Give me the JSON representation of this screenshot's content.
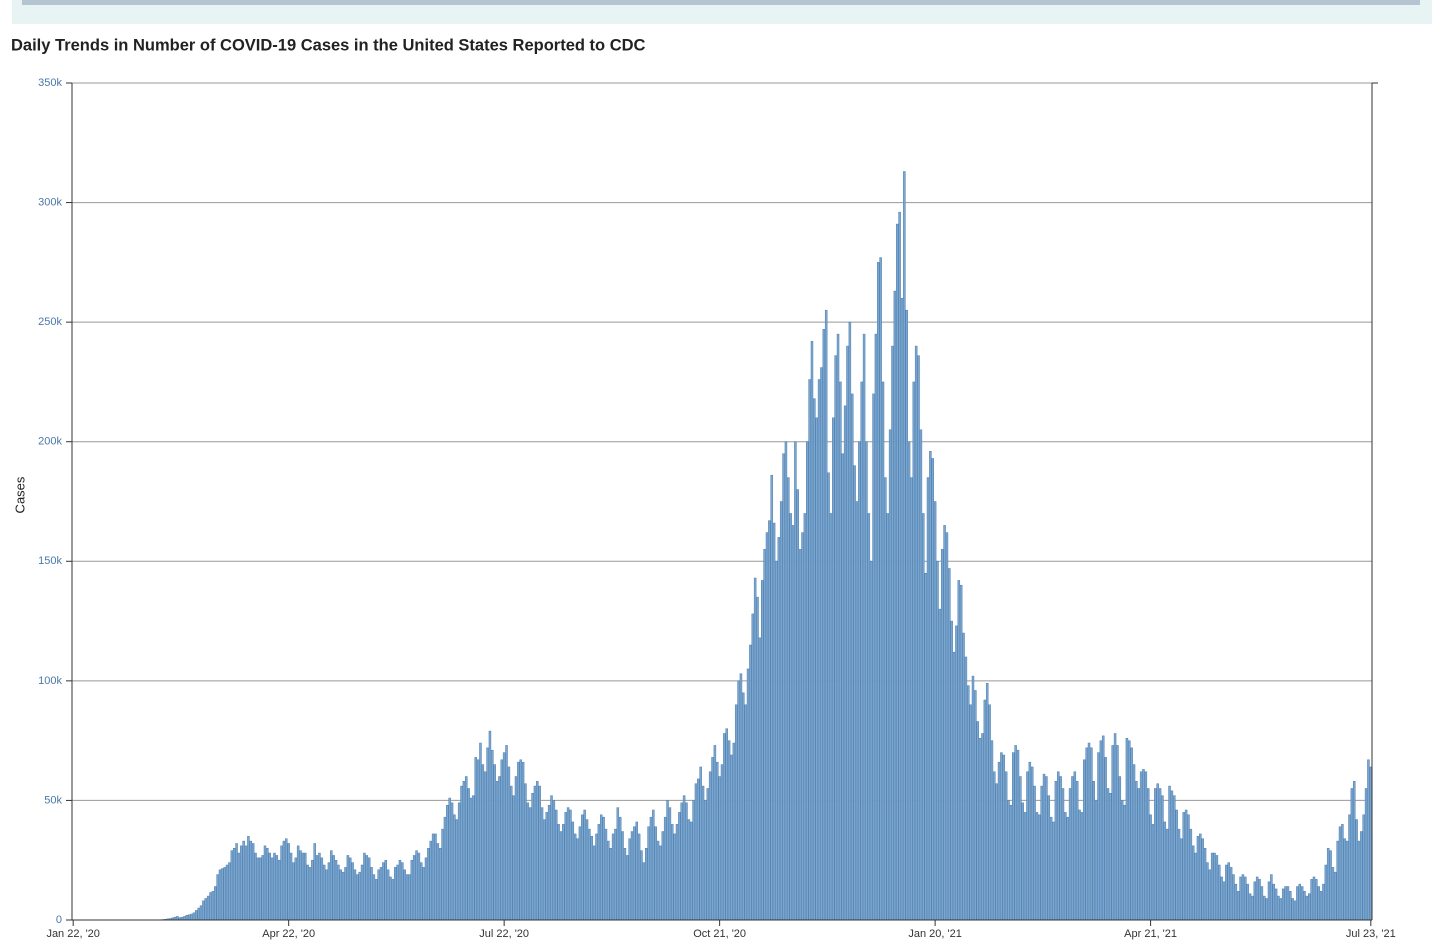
{
  "chart_data": {
    "type": "bar",
    "title": "Daily Trends in Number of COVID-19 Cases in the United States Reported to CDC",
    "y_label": "Cases",
    "color": "#7aa6d0",
    "grid": true,
    "ylim": [
      0,
      350000
    ],
    "yticks": [
      0,
      {
        "value": 50000,
        "label": "50k"
      },
      {
        "value": 100000,
        "label": "100k"
      },
      {
        "value": 150000,
        "label": "150k"
      },
      {
        "value": 200000,
        "label": "200k"
      },
      {
        "value": 250000,
        "label": "250k"
      },
      {
        "value": 300000,
        "label": "300k"
      },
      {
        "value": 350000,
        "label": "350k"
      }
    ],
    "categories": [
      "Jan 22, '20",
      null,
      null,
      null,
      null,
      null,
      null,
      null,
      null,
      null,
      null,
      null,
      null,
      null,
      null,
      null,
      null,
      null,
      null,
      null,
      null,
      null,
      null,
      null,
      null,
      null,
      null,
      null,
      null,
      null,
      null,
      null,
      null,
      null,
      null,
      null,
      null,
      null,
      null,
      null,
      null,
      null,
      null,
      null,
      null,
      null,
      null,
      null,
      null,
      null,
      null,
      null,
      null,
      null,
      null,
      null,
      null,
      null,
      null,
      null,
      null,
      null,
      null,
      null,
      null,
      null,
      null,
      null,
      null,
      null,
      null,
      null,
      null,
      null,
      null,
      null,
      null,
      null,
      null,
      null,
      null,
      null,
      null,
      null,
      null,
      null,
      null,
      null,
      null,
      null,
      null,
      "Apr 22, '20",
      null,
      null,
      null,
      null,
      null,
      null,
      null,
      null,
      null,
      null,
      null,
      null,
      null,
      null,
      null,
      null,
      null,
      null,
      null,
      null,
      null,
      null,
      null,
      null,
      null,
      null,
      null,
      null,
      null,
      null,
      null,
      null,
      null,
      null,
      null,
      null,
      null,
      null,
      null,
      null,
      null,
      null,
      null,
      null,
      null,
      null,
      null,
      null,
      null,
      null,
      null,
      null,
      null,
      null,
      null,
      null,
      null,
      null,
      null,
      null,
      null,
      null,
      null,
      null,
      null,
      null,
      null,
      null,
      null,
      null,
      null,
      null,
      null,
      null,
      null,
      null,
      null,
      null,
      null,
      null,
      null,
      null,
      null,
      null,
      null,
      null,
      null,
      null,
      null,
      null,
      "Jul 22, '20",
      null,
      null,
      null,
      null,
      null,
      null,
      null,
      null,
      null,
      null,
      null,
      null,
      null,
      null,
      null,
      null,
      null,
      null,
      null,
      null,
      null,
      null,
      null,
      null,
      null,
      null,
      null,
      null,
      null,
      null,
      null,
      null,
      null,
      null,
      null,
      null,
      null,
      null,
      null,
      null,
      null,
      null,
      null,
      null,
      null,
      null,
      null,
      null,
      null,
      null,
      null,
      null,
      null,
      null,
      null,
      null,
      null,
      null,
      null,
      null,
      null,
      null,
      null,
      null,
      null,
      null,
      null,
      null,
      null,
      null,
      null,
      null,
      null,
      null,
      null,
      null,
      null,
      null,
      null,
      null,
      null,
      null,
      null,
      null,
      null,
      null,
      null,
      null,
      null,
      null,
      "Oct 21, '20",
      null,
      null,
      null,
      null,
      null,
      null,
      null,
      null,
      null,
      null,
      null,
      null,
      null,
      null,
      null,
      null,
      null,
      null,
      null,
      null,
      null,
      null,
      null,
      null,
      null,
      null,
      null,
      null,
      null,
      null,
      null,
      null,
      null,
      null,
      null,
      null,
      null,
      null,
      null,
      null,
      null,
      null,
      null,
      null,
      null,
      null,
      null,
      null,
      null,
      null,
      null,
      null,
      null,
      null,
      null,
      null,
      null,
      null,
      null,
      null,
      null,
      null,
      null,
      null,
      null,
      null,
      null,
      null,
      null,
      null,
      null,
      null,
      null,
      null,
      null,
      null,
      null,
      null,
      null,
      null,
      null,
      null,
      null,
      null,
      null,
      null,
      null,
      null,
      null,
      null,
      "Jan 20, '21",
      null,
      null,
      null,
      null,
      null,
      null,
      null,
      null,
      null,
      null,
      null,
      null,
      null,
      null,
      null,
      null,
      null,
      null,
      null,
      null,
      null,
      null,
      null,
      null,
      null,
      null,
      null,
      null,
      null,
      null,
      null,
      null,
      null,
      null,
      null,
      null,
      null,
      null,
      null,
      null,
      null,
      null,
      null,
      null,
      null,
      null,
      null,
      null,
      null,
      null,
      null,
      null,
      null,
      null,
      null,
      null,
      null,
      null,
      null,
      null,
      null,
      null,
      null,
      null,
      null,
      null,
      null,
      null,
      null,
      null,
      null,
      null,
      null,
      null,
      null,
      null,
      null,
      null,
      null,
      null,
      null,
      null,
      null,
      null,
      null,
      null,
      null,
      null,
      null,
      null,
      "Apr 21, '21",
      null,
      null,
      null,
      null,
      null,
      null,
      null,
      null,
      null,
      null,
      null,
      null,
      null,
      null,
      null,
      null,
      null,
      null,
      null,
      null,
      null,
      null,
      null,
      null,
      null,
      null,
      null,
      null,
      null,
      null,
      null,
      null,
      null,
      null,
      null,
      null,
      null,
      null,
      null,
      null,
      null,
      null,
      null,
      null,
      null,
      null,
      null,
      null,
      null,
      null,
      null,
      null,
      null,
      null,
      null,
      null,
      null,
      null,
      null,
      null,
      null,
      null,
      null,
      null,
      null,
      null,
      null,
      null,
      null,
      null,
      null,
      null,
      null,
      null,
      null,
      null,
      null,
      null,
      null,
      null,
      null,
      null,
      null,
      null,
      null,
      null,
      null,
      null,
      null,
      null,
      null,
      null,
      "Jul 23, '21"
    ],
    "values": [
      0,
      0,
      0,
      0,
      0,
      0,
      0,
      0,
      0,
      0,
      0,
      0,
      0,
      0,
      0,
      0,
      0,
      0,
      0,
      0,
      0,
      0,
      0,
      0,
      0,
      0,
      0,
      0,
      0,
      0,
      0,
      10,
      20,
      30,
      50,
      60,
      100,
      120,
      200,
      300,
      500,
      600,
      900,
      1200,
      1500,
      1000,
      1200,
      1500,
      2000,
      2200,
      2500,
      3000,
      4000,
      5000,
      6000,
      8000,
      9000,
      10000,
      11500,
      12000,
      14000,
      19000,
      21000,
      21500,
      22000,
      23000,
      24000,
      29000,
      30000,
      32000,
      28000,
      31000,
      33000,
      31000,
      35000,
      33000,
      32000,
      28000,
      26000,
      26000,
      27000,
      31000,
      30000,
      28000,
      26000,
      28000,
      27000,
      25000,
      31000,
      33000,
      34000,
      32000,
      28000,
      24000,
      26000,
      31000,
      29000,
      28000,
      28000,
      23000,
      22000,
      25000,
      32000,
      27000,
      28000,
      26000,
      23000,
      21000,
      24000,
      29000,
      27000,
      25000,
      23000,
      21000,
      20000,
      22000,
      27000,
      26000,
      24000,
      21000,
      19000,
      20000,
      23000,
      28000,
      27000,
      26000,
      22000,
      19000,
      17000,
      21000,
      22000,
      24000,
      25000,
      21000,
      18000,
      17000,
      22000,
      23000,
      25000,
      24000,
      21000,
      19000,
      19000,
      25000,
      27000,
      29000,
      28000,
      24000,
      22000,
      26000,
      30000,
      33000,
      36000,
      36000,
      32000,
      30000,
      38000,
      43000,
      48000,
      51000,
      49000,
      44000,
      42000,
      49000,
      56000,
      58000,
      60000,
      55000,
      51000,
      52000,
      68000,
      67000,
      74000,
      65000,
      62000,
      72000,
      79000,
      71000,
      65000,
      58000,
      60000,
      67000,
      70000,
      73000,
      64000,
      56000,
      52000,
      60000,
      66000,
      67000,
      66000,
      57000,
      49000,
      47000,
      53000,
      56000,
      58000,
      56000,
      47000,
      42000,
      45000,
      48000,
      52000,
      50000,
      46000,
      40000,
      37000,
      40000,
      45000,
      47000,
      46000,
      41000,
      36000,
      34000,
      39000,
      44000,
      46000,
      42000,
      38000,
      35000,
      31000,
      36000,
      40000,
      44000,
      43000,
      38000,
      33000,
      30000,
      36000,
      38000,
      47000,
      43000,
      37000,
      30000,
      27000,
      34000,
      37000,
      39000,
      41000,
      36000,
      29000,
      24000,
      30000,
      39000,
      43000,
      46000,
      39000,
      33000,
      31000,
      37000,
      43000,
      50000,
      47000,
      40000,
      36000,
      40000,
      45000,
      49000,
      52000,
      49000,
      42000,
      41000,
      50000,
      57000,
      59000,
      64000,
      56000,
      50000,
      55000,
      62000,
      68000,
      73000,
      66000,
      60000,
      65000,
      78000,
      80000,
      75000,
      69000,
      74000,
      90000,
      100000,
      103000,
      95000,
      90000,
      105000,
      115000,
      128000,
      143000,
      135000,
      118000,
      142000,
      155000,
      162000,
      167000,
      186000,
      166000,
      150000,
      160000,
      175000,
      195000,
      200000,
      185000,
      170000,
      165000,
      200000,
      180000,
      155000,
      162000,
      170000,
      200000,
      226000,
      242000,
      218000,
      210000,
      226000,
      231000,
      247000,
      255000,
      187000,
      170000,
      210000,
      236000,
      245000,
      225000,
      195000,
      215000,
      240000,
      250000,
      220000,
      190000,
      175000,
      200000,
      225000,
      245000,
      200000,
      170000,
      150000,
      220000,
      245000,
      275000,
      277000,
      225000,
      185000,
      170000,
      205000,
      240000,
      263000,
      291000,
      296000,
      260000,
      313000,
      255000,
      200000,
      185000,
      225000,
      240000,
      236000,
      205000,
      170000,
      145000,
      185000,
      196000,
      193000,
      175000,
      150000,
      130000,
      155000,
      165000,
      162000,
      147000,
      125000,
      112000,
      123000,
      142000,
      140000,
      120000,
      110000,
      98000,
      90000,
      102000,
      96000,
      83000,
      76000,
      78000,
      92000,
      99000,
      90000,
      75000,
      62000,
      57000,
      66000,
      70000,
      69000,
      62000,
      50000,
      48000,
      70000,
      73000,
      71000,
      60000,
      49000,
      45000,
      62000,
      66000,
      64000,
      56000,
      45000,
      44000,
      56000,
      61000,
      60000,
      52000,
      43000,
      41000,
      58000,
      62000,
      60000,
      55000,
      45000,
      43000,
      55000,
      60000,
      62000,
      58000,
      46000,
      45000,
      67000,
      72000,
      74000,
      72000,
      58000,
      50000,
      70000,
      75000,
      77000,
      68000,
      55000,
      53000,
      73000,
      78000,
      73000,
      60000,
      50000,
      48000,
      76000,
      75000,
      72000,
      65000,
      58000,
      55000,
      62000,
      63000,
      62000,
      55000,
      44000,
      40000,
      55000,
      57000,
      55000,
      52000,
      41000,
      38000,
      56000,
      54000,
      52000,
      46000,
      38000,
      34000,
      45000,
      46000,
      44000,
      38000,
      31000,
      28000,
      35000,
      36000,
      34000,
      30000,
      24000,
      21000,
      28000,
      28000,
      27000,
      23000,
      18000,
      16000,
      23000,
      24000,
      22000,
      19000,
      15000,
      12000,
      18000,
      19000,
      18000,
      15000,
      11000,
      10000,
      16000,
      18000,
      17000,
      14000,
      10000,
      9000,
      16000,
      19000,
      15000,
      13000,
      10000,
      9000,
      13000,
      14000,
      14000,
      12000,
      9000,
      8000,
      14000,
      15000,
      14000,
      12000,
      10000,
      11000,
      17000,
      18000,
      17000,
      14000,
      12000,
      15000,
      23000,
      30000,
      29000,
      22000,
      20000,
      33000,
      39000,
      40000,
      34000,
      33000,
      44000,
      55000,
      58000,
      42000,
      33000,
      37000,
      44000,
      55000,
      67000,
      64000
    ]
  }
}
